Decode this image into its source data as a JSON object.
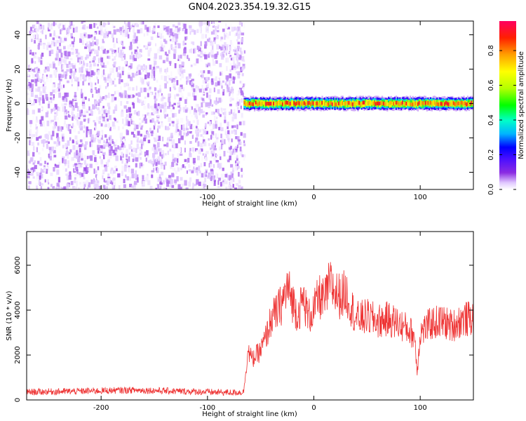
{
  "title": "GN04.2023.354.19.32.G15",
  "chart_data": [
    {
      "type": "heatmap",
      "xlabel": "Height of straight line (km)",
      "ylabel": "Frequency (Hz)",
      "xlim": [
        -270,
        150
      ],
      "ylim": [
        -50,
        48
      ],
      "xticks": [
        -200,
        -100,
        0,
        100
      ],
      "yticks": [
        -40,
        -20,
        0,
        20,
        40
      ],
      "colorbar": {
        "label": "Normalized spectral amplitude",
        "range": [
          0,
          0.97
        ],
        "ticks": [
          0.0,
          0.2,
          0.4,
          0.6,
          0.8
        ],
        "colormap": [
          "#ffffff",
          "#e0c8ff",
          "#8a2be2",
          "#4b0fff",
          "#0000ff",
          "#00b4ff",
          "#00ffc8",
          "#00ff00",
          "#b4ff00",
          "#ffff00",
          "#ffa000",
          "#ff2000",
          "#ff0060"
        ]
      },
      "regions": [
        {
          "x_from": -270,
          "x_to": -66,
          "f_from": -50,
          "f_to": 48,
          "description": "broadband noise",
          "amplitude_range": [
            0.0,
            0.15
          ]
        },
        {
          "x_from": -66,
          "x_to": 150,
          "f_center": 0,
          "f_halfwidth": 4,
          "description": "narrow signal line",
          "amplitude_range": [
            0.1,
            0.97
          ]
        }
      ]
    },
    {
      "type": "line",
      "xlabel": "Height of straight line (km)",
      "ylabel": "SNR (10 * v/v)",
      "xlim": [
        -270,
        150
      ],
      "ylim": [
        0,
        7500
      ],
      "xticks": [
        -200,
        -100,
        0,
        100
      ],
      "yticks": [
        0,
        2000,
        4000,
        6000
      ],
      "color": "#ee3333",
      "series": [
        {
          "x": [
            -270,
            -250,
            -230,
            -210,
            -190,
            -170,
            -150,
            -130,
            -110,
            -90,
            -75,
            -66,
            -62,
            -58,
            -50,
            -45,
            -40,
            -35,
            -30,
            -25,
            -20,
            -15,
            -10,
            -5,
            0,
            5,
            10,
            15,
            20,
            25,
            30,
            35,
            40,
            50,
            60,
            70,
            80,
            90,
            95,
            97,
            100,
            110,
            120,
            130,
            140,
            150
          ],
          "y": [
            350,
            370,
            380,
            400,
            420,
            440,
            420,
            390,
            370,
            340,
            330,
            350,
            2200,
            1800,
            2200,
            2800,
            3600,
            3900,
            4300,
            5000,
            4400,
            3800,
            4500,
            3700,
            4000,
            4600,
            4400,
            5200,
            4800,
            4600,
            4800,
            4200,
            3600,
            3700,
            3500,
            3600,
            3400,
            3100,
            2800,
            1200,
            3000,
            3400,
            3500,
            3300,
            3600,
            3600
          ]
        }
      ]
    }
  ]
}
